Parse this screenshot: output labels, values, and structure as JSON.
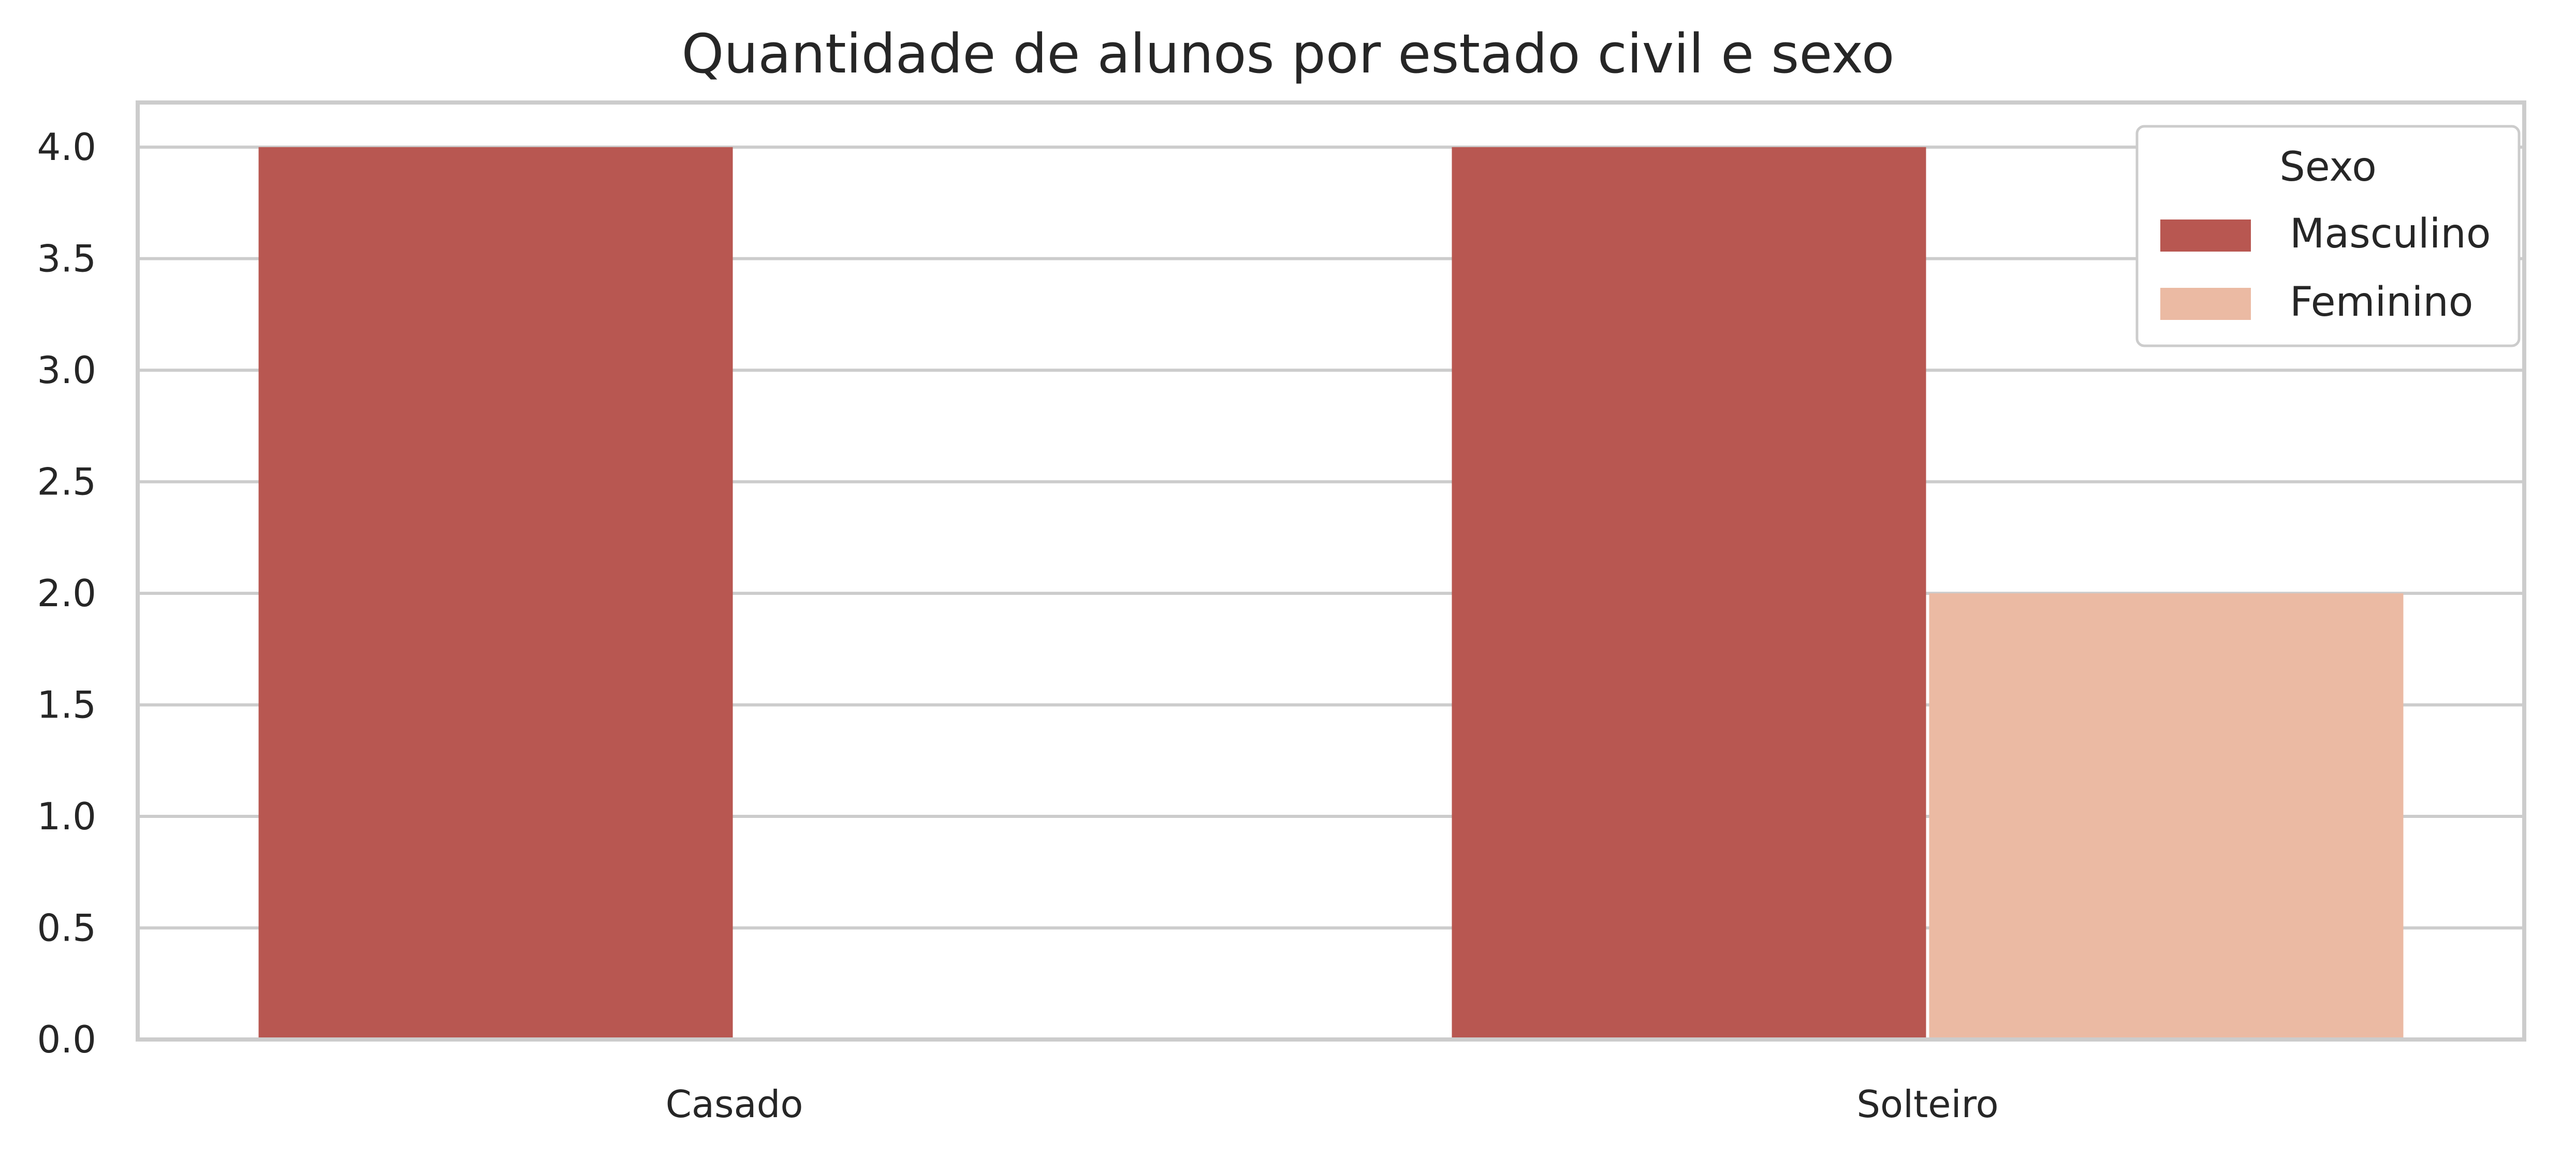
{
  "chart_data": {
    "type": "bar",
    "title": "Quantidade de alunos por estado civil e sexo",
    "xlabel": "",
    "ylabel": "",
    "categories": [
      "Casado",
      "Solteiro"
    ],
    "series": [
      {
        "name": "Masculino",
        "values": [
          4,
          4
        ],
        "color": "#b85751"
      },
      {
        "name": "Feminino",
        "values": [
          0,
          2
        ],
        "color": "#ebbaa3"
      }
    ],
    "ylim": [
      0,
      4.2
    ],
    "yticks": [
      "0.0",
      "0.5",
      "1.0",
      "1.5",
      "2.0",
      "2.5",
      "3.0",
      "3.5",
      "4.0"
    ],
    "grid": "horizontal",
    "legend": {
      "title": "Sexo",
      "placement": "top-right"
    },
    "colors": {
      "grid": "#cccccc",
      "spine": "#cccccc",
      "text": "#262626",
      "background": "#ffffff"
    }
  }
}
